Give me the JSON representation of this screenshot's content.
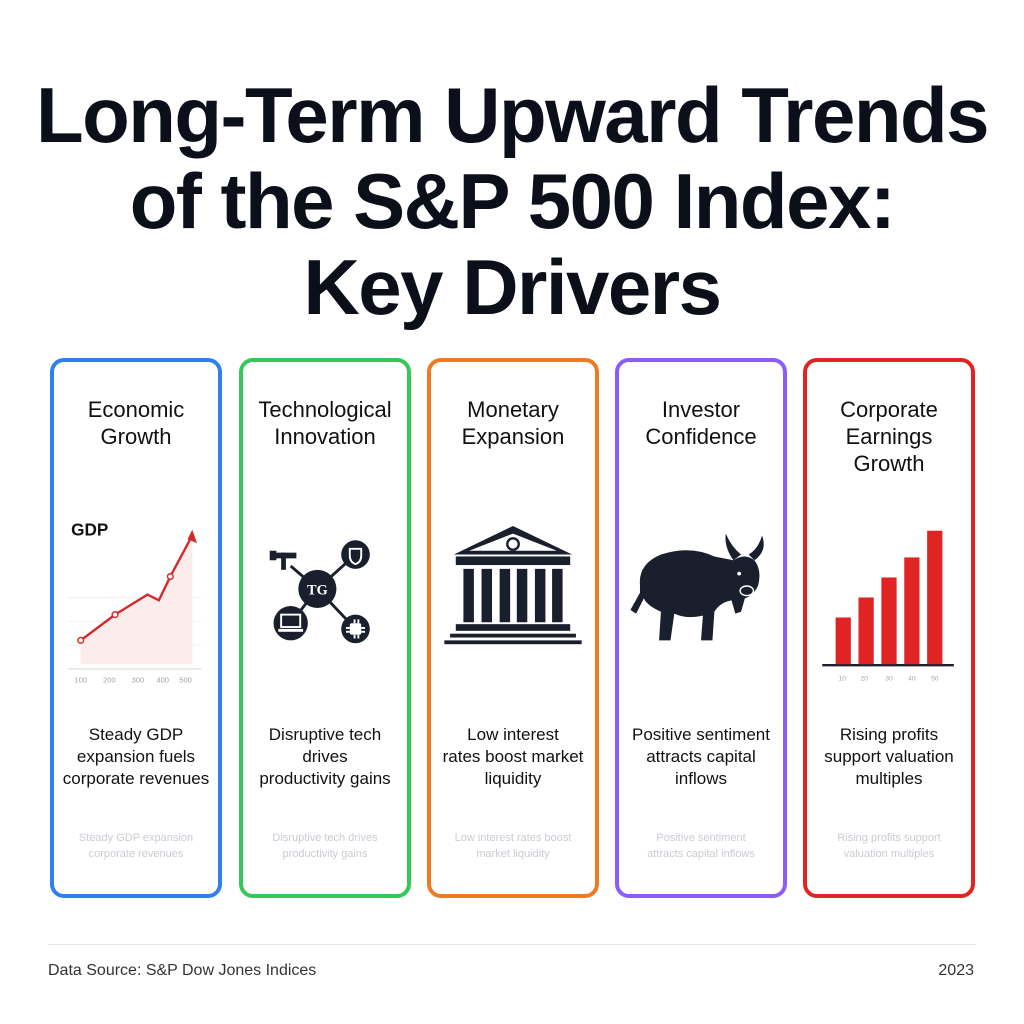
{
  "title": {
    "line1": "Long-Term Upward Trends",
    "line2": "of the S&P 500 Index:",
    "line3": "Key Drivers"
  },
  "cards": [
    {
      "color": "#2f80ed",
      "title_lines": [
        "Economic",
        "Growth"
      ],
      "illustration": "gdp-line-chart",
      "chart_label": "GDP",
      "ticks": [
        "100",
        "200",
        "300",
        "400",
        "500"
      ],
      "desc_lines": [
        "Steady GDP",
        "expansion fuels",
        "corporate revenues"
      ],
      "faint_lines": [
        "Steady GDP expansion",
        "corporate revenues"
      ]
    },
    {
      "color": "#34c759",
      "title_lines": [
        "Technological",
        "Innovation"
      ],
      "illustration": "tech-network-icon",
      "node_label": "TG",
      "desc_lines": [
        "Disruptive tech",
        "drives",
        "productivity gains"
      ],
      "faint_lines": [
        "Disruptive tech drives",
        "productivity gains"
      ]
    },
    {
      "color": "#f07a24",
      "title_lines": [
        "Monetary",
        "Expansion"
      ],
      "illustration": "central-bank-icon",
      "desc_lines": [
        "Low interest",
        "rates boost market",
        "liquidity"
      ],
      "faint_lines": [
        "Low interest rates boost",
        "market liquidity"
      ]
    },
    {
      "color": "#8b5cf6",
      "title_lines": [
        "Investor",
        "Confidence"
      ],
      "illustration": "bull-icon",
      "desc_lines": [
        "Positive sentiment",
        "attracts capital",
        "inflows"
      ],
      "faint_lines": [
        "Positive sentiment",
        "attracts capital inflows"
      ]
    },
    {
      "color": "#e02424",
      "title_lines": [
        "Corporate",
        "Earnings",
        "Growth"
      ],
      "illustration": "earnings-bar-chart",
      "bar_values": [
        0.35,
        0.5,
        0.65,
        0.8,
        1.0
      ],
      "ticks": [
        "10",
        "20",
        "30",
        "40",
        "50"
      ],
      "desc_lines": [
        "Rising profits",
        "support valuation",
        "multiples"
      ],
      "faint_lines": [
        "Rising profits support",
        "valuation multiples"
      ]
    }
  ],
  "footer": {
    "source": "Data Source: S&P Dow Jones Indices",
    "year": "2023"
  }
}
